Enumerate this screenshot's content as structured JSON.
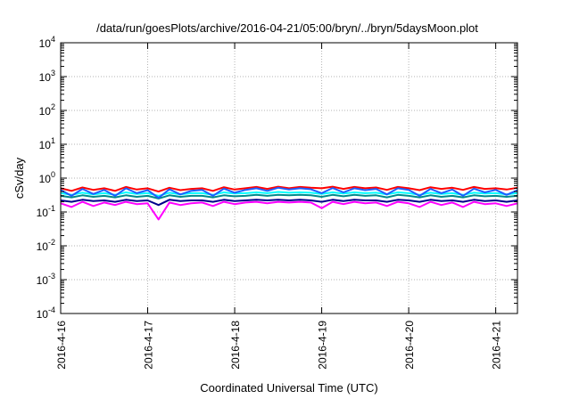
{
  "chart_data": {
    "type": "line",
    "title": "/data/run/goesPlots/archive/2016-04-21/05:00/bryn/../bryn/5daysMoon.plot",
    "xlabel": "Coordinated Universal Time (UTC)",
    "ylabel": "cSv/day",
    "yscale": "log",
    "ylim": [
      0.0001,
      10000
    ],
    "xlim": [
      "2016-04-16T00:00",
      "2016-04-21T06:00"
    ],
    "grid": true,
    "legend": "none",
    "x_ticks": [
      {
        "x": "2016-04-16T00:00",
        "label": "2016-4-16"
      },
      {
        "x": "2016-04-17T00:00",
        "label": "2016-4-17"
      },
      {
        "x": "2016-04-18T00:00",
        "label": "2016-4-18"
      },
      {
        "x": "2016-04-19T00:00",
        "label": "2016-4-19"
      },
      {
        "x": "2016-04-20T00:00",
        "label": "2016-4-20"
      },
      {
        "x": "2016-04-21T00:00",
        "label": "2016-4-21"
      }
    ],
    "y_ticks": [
      {
        "value": 0.0001,
        "base": "10",
        "exp": "-4"
      },
      {
        "value": 0.001,
        "base": "10",
        "exp": "-3"
      },
      {
        "value": 0.01,
        "base": "10",
        "exp": "-2"
      },
      {
        "value": 0.1,
        "base": "10",
        "exp": "-1"
      },
      {
        "value": 1,
        "base": "10",
        "exp": "0"
      },
      {
        "value": 10,
        "base": "10",
        "exp": "1"
      },
      {
        "value": 100,
        "base": "10",
        "exp": "2"
      },
      {
        "value": 1000,
        "base": "10",
        "exp": "3"
      },
      {
        "value": 10000,
        "base": "10",
        "exp": "4"
      }
    ],
    "x": [
      "2016-04-16T00:00",
      "2016-04-16T03:00",
      "2016-04-16T06:00",
      "2016-04-16T09:00",
      "2016-04-16T12:00",
      "2016-04-16T15:00",
      "2016-04-16T18:00",
      "2016-04-16T21:00",
      "2016-04-17T00:00",
      "2016-04-17T03:00",
      "2016-04-17T06:00",
      "2016-04-17T09:00",
      "2016-04-17T12:00",
      "2016-04-17T15:00",
      "2016-04-17T18:00",
      "2016-04-17T21:00",
      "2016-04-18T00:00",
      "2016-04-18T03:00",
      "2016-04-18T06:00",
      "2016-04-18T09:00",
      "2016-04-18T12:00",
      "2016-04-18T15:00",
      "2016-04-18T18:00",
      "2016-04-18T21:00",
      "2016-04-19T00:00",
      "2016-04-19T03:00",
      "2016-04-19T06:00",
      "2016-04-19T09:00",
      "2016-04-19T12:00",
      "2016-04-19T15:00",
      "2016-04-19T18:00",
      "2016-04-19T21:00",
      "2016-04-20T00:00",
      "2016-04-20T03:00",
      "2016-04-20T06:00",
      "2016-04-20T09:00",
      "2016-04-20T12:00",
      "2016-04-20T15:00",
      "2016-04-20T18:00",
      "2016-04-20T21:00",
      "2016-04-21T00:00",
      "2016-04-21T03:00",
      "2016-04-21T06:00"
    ],
    "series": [
      {
        "color": "#ff0000",
        "values": [
          0.5,
          0.42,
          0.53,
          0.45,
          0.5,
          0.42,
          0.55,
          0.46,
          0.5,
          0.4,
          0.52,
          0.44,
          0.48,
          0.5,
          0.42,
          0.54,
          0.46,
          0.5,
          0.55,
          0.48,
          0.56,
          0.5,
          0.55,
          0.52,
          0.5,
          0.56,
          0.48,
          0.55,
          0.5,
          0.53,
          0.45,
          0.55,
          0.5,
          0.44,
          0.54,
          0.48,
          0.52,
          0.45,
          0.55,
          0.48,
          0.5,
          0.46,
          0.52
        ]
      },
      {
        "color": "#ff00ff",
        "values": [
          0.18,
          0.14,
          0.2,
          0.15,
          0.19,
          0.16,
          0.2,
          0.17,
          0.18,
          0.06,
          0.19,
          0.16,
          0.18,
          0.19,
          0.15,
          0.2,
          0.17,
          0.19,
          0.2,
          0.18,
          0.2,
          0.19,
          0.2,
          0.19,
          0.13,
          0.2,
          0.17,
          0.2,
          0.18,
          0.19,
          0.15,
          0.2,
          0.18,
          0.14,
          0.2,
          0.16,
          0.19,
          0.14,
          0.2,
          0.17,
          0.18,
          0.15,
          0.18
        ]
      },
      {
        "color": "#00008b",
        "values": [
          0.22,
          0.2,
          0.23,
          0.21,
          0.22,
          0.2,
          0.23,
          0.21,
          0.22,
          0.16,
          0.23,
          0.21,
          0.22,
          0.22,
          0.2,
          0.23,
          0.21,
          0.22,
          0.23,
          0.22,
          0.23,
          0.22,
          0.23,
          0.22,
          0.2,
          0.23,
          0.21,
          0.23,
          0.22,
          0.22,
          0.2,
          0.23,
          0.22,
          0.2,
          0.23,
          0.21,
          0.22,
          0.2,
          0.23,
          0.21,
          0.22,
          0.2,
          0.22
        ]
      },
      {
        "color": "#008b8b",
        "values": [
          0.3,
          0.27,
          0.31,
          0.28,
          0.3,
          0.27,
          0.31,
          0.28,
          0.3,
          0.25,
          0.31,
          0.28,
          0.3,
          0.3,
          0.27,
          0.31,
          0.29,
          0.3,
          0.32,
          0.3,
          0.32,
          0.31,
          0.32,
          0.31,
          0.28,
          0.32,
          0.29,
          0.32,
          0.3,
          0.31,
          0.27,
          0.32,
          0.3,
          0.27,
          0.31,
          0.28,
          0.3,
          0.27,
          0.31,
          0.29,
          0.3,
          0.28,
          0.3
        ]
      },
      {
        "color": "#00ffff",
        "values": [
          0.36,
          0.32,
          0.37,
          0.33,
          0.36,
          0.32,
          0.38,
          0.34,
          0.36,
          0.3,
          0.37,
          0.33,
          0.36,
          0.36,
          0.32,
          0.38,
          0.35,
          0.36,
          0.38,
          0.36,
          0.39,
          0.37,
          0.38,
          0.37,
          0.34,
          0.38,
          0.35,
          0.38,
          0.36,
          0.37,
          0.33,
          0.38,
          0.36,
          0.32,
          0.37,
          0.34,
          0.36,
          0.32,
          0.37,
          0.35,
          0.36,
          0.33,
          0.36
        ]
      },
      {
        "color": "#1e5cff",
        "values": [
          0.45,
          0.3,
          0.48,
          0.34,
          0.45,
          0.3,
          0.5,
          0.36,
          0.44,
          0.26,
          0.47,
          0.33,
          0.42,
          0.45,
          0.3,
          0.49,
          0.37,
          0.45,
          0.5,
          0.42,
          0.52,
          0.46,
          0.5,
          0.47,
          0.36,
          0.51,
          0.38,
          0.5,
          0.44,
          0.48,
          0.33,
          0.5,
          0.45,
          0.3,
          0.48,
          0.36,
          0.46,
          0.3,
          0.49,
          0.38,
          0.45,
          0.32,
          0.44
        ]
      }
    ]
  }
}
